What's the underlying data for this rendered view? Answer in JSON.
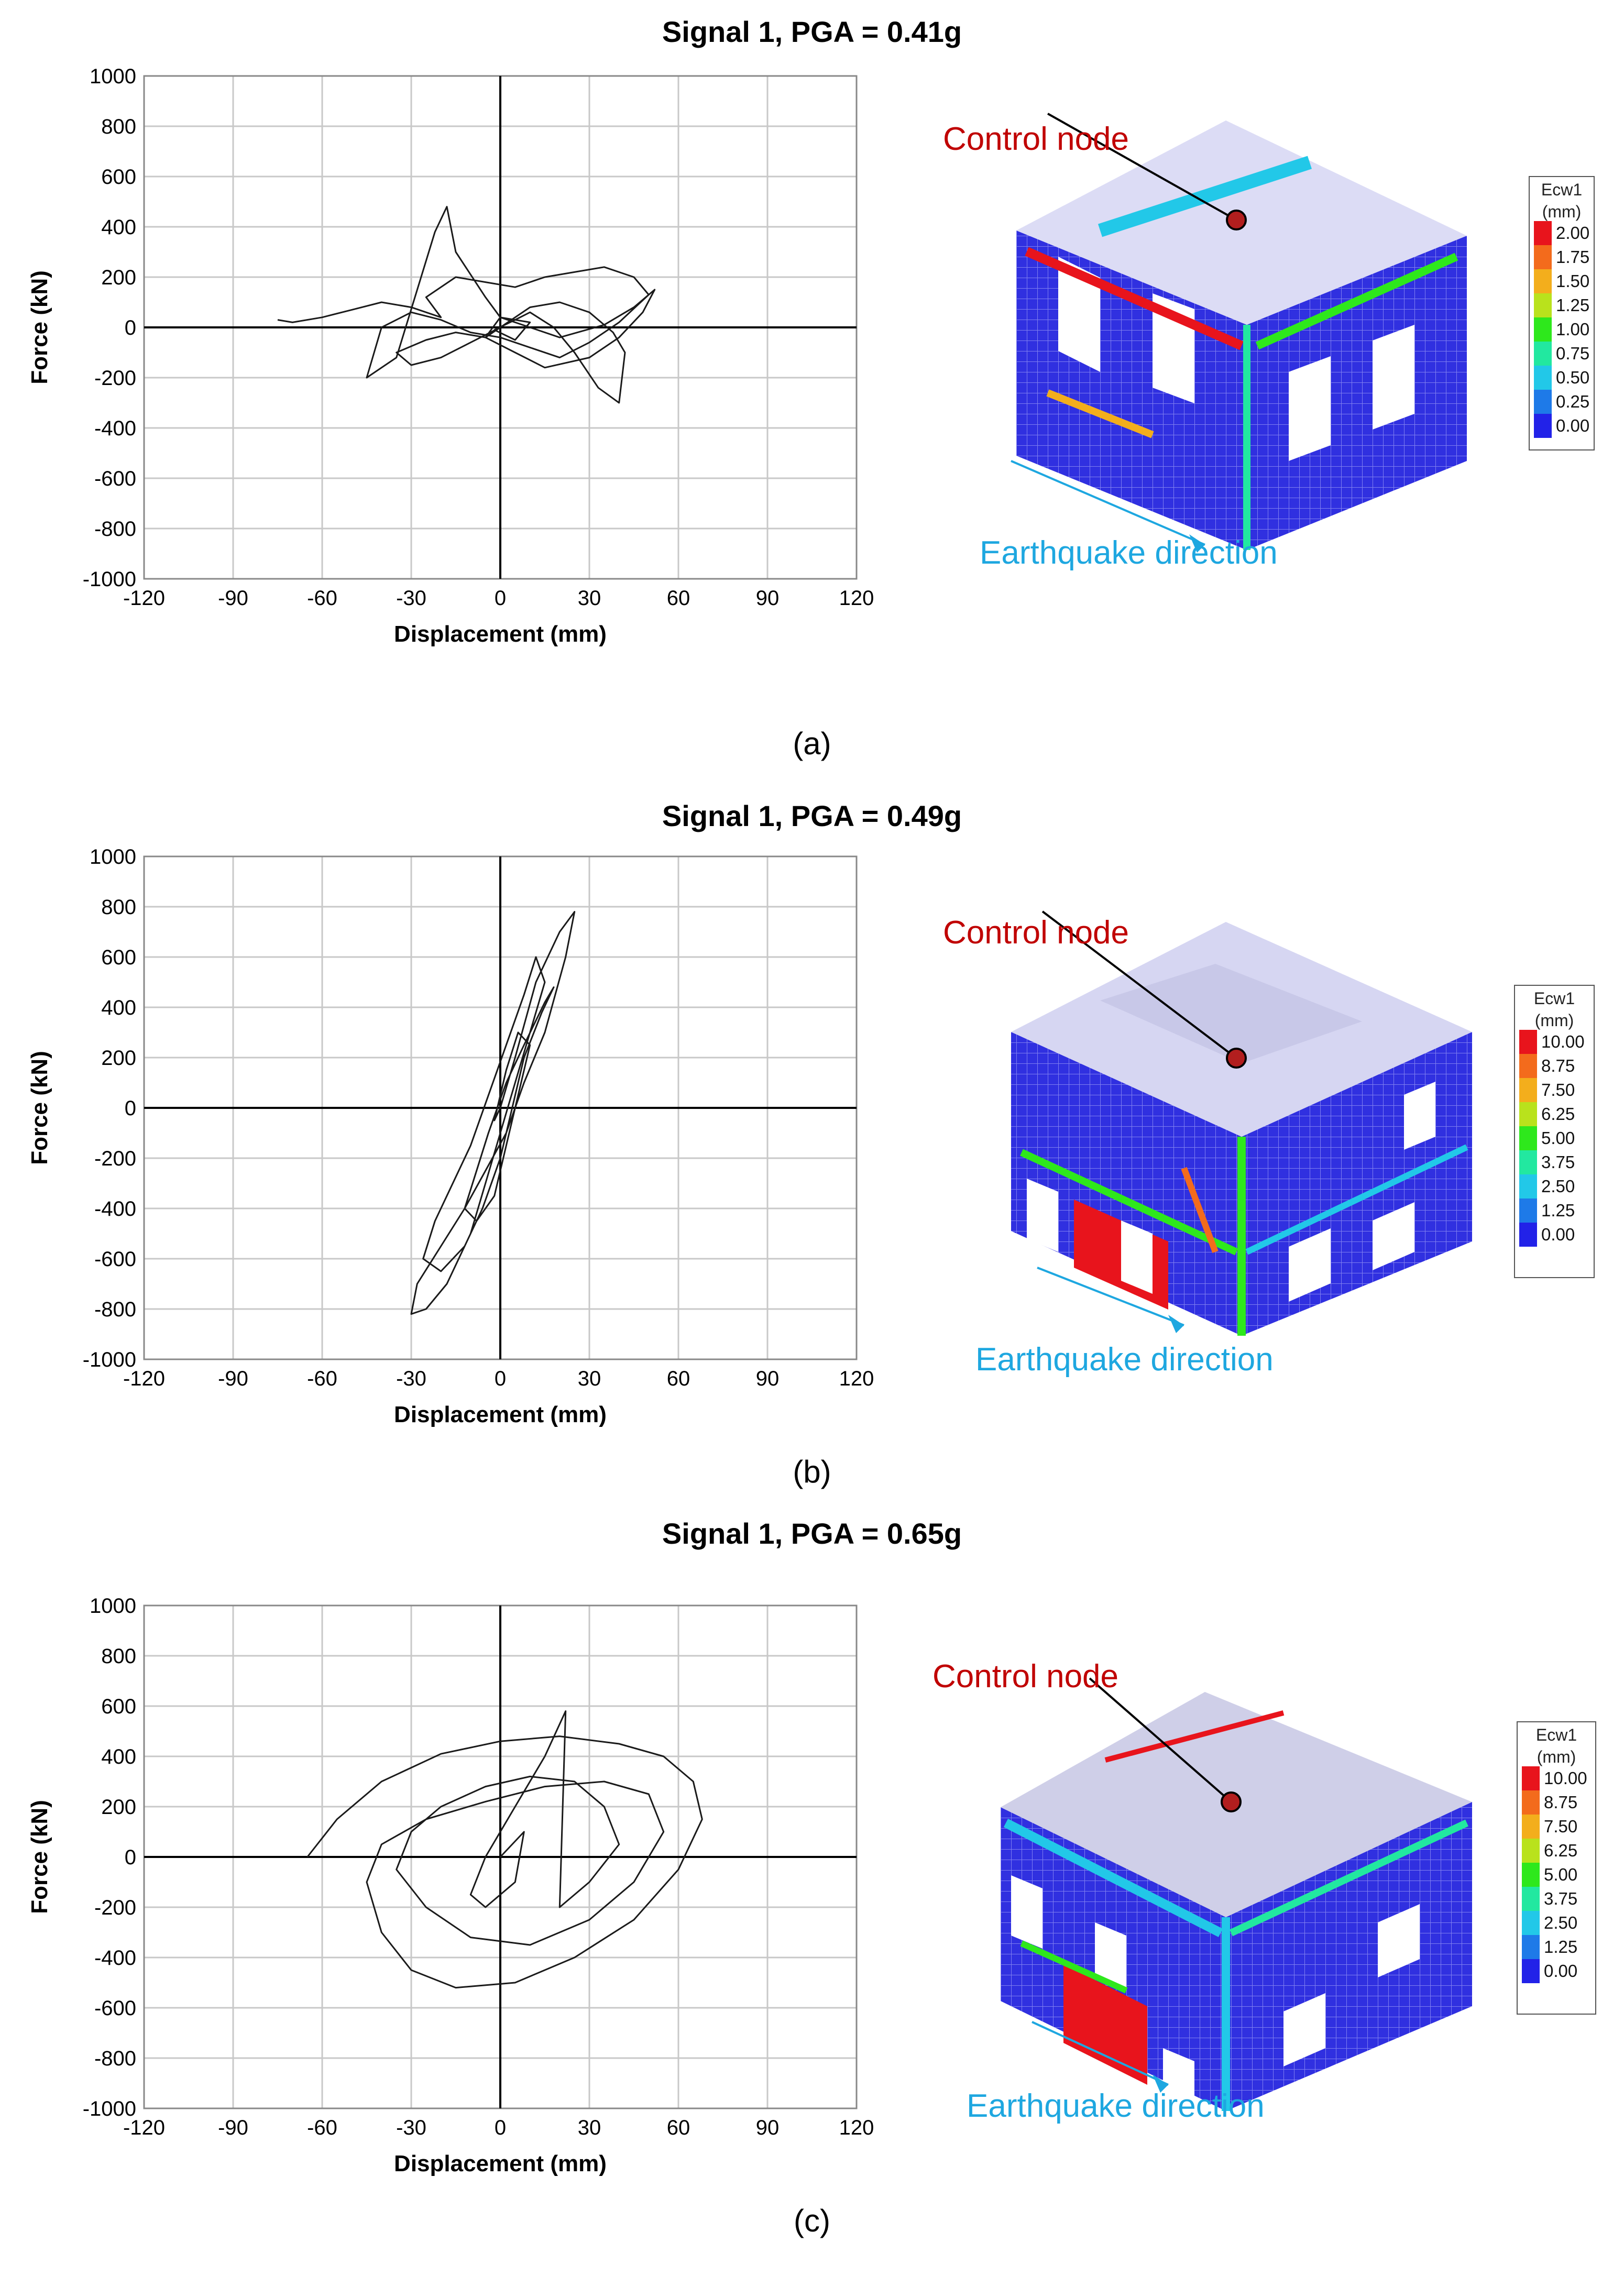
{
  "chart_data": [
    {
      "type": "line",
      "panel": "(a)",
      "title": "Signal 1, PGA = 0.41g",
      "xlabel": "Displacement (mm)",
      "ylabel": "Force (kN)",
      "xlim": [
        -120,
        120
      ],
      "ylim": [
        -1000,
        1000
      ],
      "xticks": [
        -120,
        -90,
        -60,
        -30,
        0,
        30,
        60,
        90,
        120
      ],
      "yticks": [
        -1000,
        -800,
        -600,
        -400,
        -200,
        0,
        200,
        400,
        600,
        800,
        1000
      ],
      "series": [
        {
          "name": "Force-displacement response",
          "x": [
            -75,
            -70,
            -60,
            -50,
            -40,
            -30,
            -20,
            -25,
            -15,
            -5,
            5,
            15,
            25,
            35,
            45,
            50,
            40,
            30,
            20,
            10,
            0,
            -10,
            -20,
            -30,
            -40,
            -45,
            -35,
            -22,
            -18,
            -15,
            -5,
            0,
            10,
            20,
            35,
            45,
            52,
            48,
            40,
            30,
            15,
            5,
            -5,
            -15,
            -25,
            -35,
            -30,
            -20,
            -10,
            0,
            10,
            20,
            30,
            38,
            42,
            40,
            33,
            25,
            18,
            10,
            5,
            -2,
            5,
            10,
            0,
            -5,
            0
          ],
          "y": [
            30,
            20,
            40,
            70,
            100,
            80,
            40,
            120,
            200,
            180,
            160,
            200,
            220,
            240,
            200,
            130,
            20,
            -60,
            -120,
            -80,
            -40,
            -20,
            30,
            60,
            0,
            -200,
            -120,
            380,
            480,
            300,
            120,
            40,
            0,
            -40,
            10,
            80,
            150,
            60,
            -40,
            -120,
            -160,
            -100,
            -40,
            -20,
            -50,
            -100,
            -150,
            -120,
            -60,
            0,
            80,
            100,
            60,
            -20,
            -100,
            -300,
            -240,
            -100,
            0,
            60,
            30,
            -10,
            -50,
            20,
            40,
            -40,
            0
          ]
        }
      ]
    },
    {
      "type": "line",
      "panel": "(b)",
      "title": "Signal 1, PGA = 0.49g",
      "xlabel": "Displacement (mm)",
      "ylabel": "Force (kN)",
      "xlim": [
        -120,
        120
      ],
      "ylim": [
        -1000,
        1000
      ],
      "xticks": [
        -120,
        -90,
        -60,
        -30,
        0,
        30,
        60,
        90,
        120
      ],
      "yticks": [
        -1000,
        -800,
        -600,
        -400,
        -200,
        0,
        200,
        400,
        600,
        800,
        1000
      ],
      "series": [
        {
          "name": "Force-displacement response",
          "x": [
            0,
            5,
            12,
            20,
            25,
            22,
            15,
            8,
            2,
            -5,
            -12,
            -20,
            -28,
            -30,
            -25,
            -18,
            -10,
            -5,
            0,
            5,
            10,
            15,
            12,
            8,
            2,
            -4,
            -10,
            -16,
            -22,
            -26,
            -20,
            -12,
            -6,
            0,
            4,
            8,
            14,
            18,
            15,
            8,
            2,
            -4,
            -8,
            -12,
            -8,
            -2,
            2,
            6,
            10,
            6,
            2,
            -2,
            0
          ],
          "y": [
            0,
            200,
            500,
            700,
            780,
            600,
            300,
            100,
            -100,
            -250,
            -400,
            -550,
            -700,
            -820,
            -800,
            -700,
            -500,
            -300,
            -100,
            100,
            300,
            500,
            600,
            450,
            250,
            50,
            -150,
            -300,
            -450,
            -600,
            -650,
            -550,
            -400,
            -200,
            0,
            200,
            380,
            480,
            420,
            250,
            100,
            -100,
            -250,
            -400,
            -450,
            -350,
            -150,
            50,
            250,
            300,
            150,
            -50,
            0
          ]
        }
      ]
    },
    {
      "type": "line",
      "panel": "(c)",
      "title": "Signal 1, PGA = 0.65g",
      "xlabel": "Displacement (mm)",
      "ylabel": "Force (kN)",
      "xlim": [
        -120,
        120
      ],
      "ylim": [
        -1000,
        1000
      ],
      "xticks": [
        -120,
        -90,
        -60,
        -30,
        0,
        30,
        60,
        90,
        120
      ],
      "yticks": [
        -1000,
        -800,
        -600,
        -400,
        -200,
        0,
        200,
        400,
        600,
        800,
        1000
      ],
      "series": [
        {
          "name": "Force-displacement response",
          "x": [
            -65,
            -55,
            -40,
            -20,
            0,
            20,
            40,
            55,
            65,
            68,
            60,
            45,
            25,
            5,
            -15,
            -30,
            -40,
            -45,
            -40,
            -25,
            -5,
            15,
            35,
            50,
            55,
            45,
            30,
            10,
            -10,
            -25,
            -35,
            -30,
            -20,
            -5,
            10,
            25,
            35,
            40,
            30,
            20,
            22,
            15,
            5,
            -5,
            -10,
            -5,
            5,
            8,
            0
          ],
          "y": [
            0,
            150,
            300,
            410,
            460,
            480,
            450,
            400,
            300,
            150,
            -50,
            -250,
            -400,
            -500,
            -520,
            -450,
            -300,
            -100,
            50,
            150,
            220,
            280,
            300,
            250,
            100,
            -100,
            -250,
            -350,
            -320,
            -200,
            -50,
            100,
            200,
            280,
            320,
            300,
            200,
            50,
            -100,
            -200,
            580,
            400,
            200,
            0,
            -150,
            -200,
            -100,
            100,
            0
          ]
        }
      ]
    }
  ],
  "captions": [
    "(a)",
    "(b)",
    "(c)"
  ],
  "models": [
    {
      "annotation": "Control node",
      "direction_label": "Earthquake direction",
      "legend_title": "Ecw1",
      "legend_unit": "(mm)",
      "legend_values": [
        "2.00",
        "1.75",
        "1.50",
        "1.25",
        "1.00",
        "0.75",
        "0.50",
        "0.25",
        "0.00"
      ]
    },
    {
      "annotation": "Control node",
      "direction_label": "Earthquake direction",
      "legend_title": "Ecw1",
      "legend_unit": "(mm)",
      "legend_values": [
        "10.00",
        "8.75",
        "7.50",
        "6.25",
        "5.00",
        "3.75",
        "2.50",
        "1.25",
        "0.00"
      ]
    },
    {
      "annotation": "Control node",
      "direction_label": "Earthquake direction",
      "legend_title": "Ecw1",
      "legend_unit": "(mm)",
      "legend_values": [
        "10.00",
        "8.75",
        "7.50",
        "6.25",
        "5.00",
        "3.75",
        "2.50",
        "1.25",
        "0.00"
      ]
    }
  ],
  "legend_colors": [
    "#e8141c",
    "#f36b1c",
    "#f3ae1c",
    "#b9e21c",
    "#2ee81c",
    "#22e8a0",
    "#22c8e8",
    "#1e7ae8",
    "#2222e8"
  ]
}
